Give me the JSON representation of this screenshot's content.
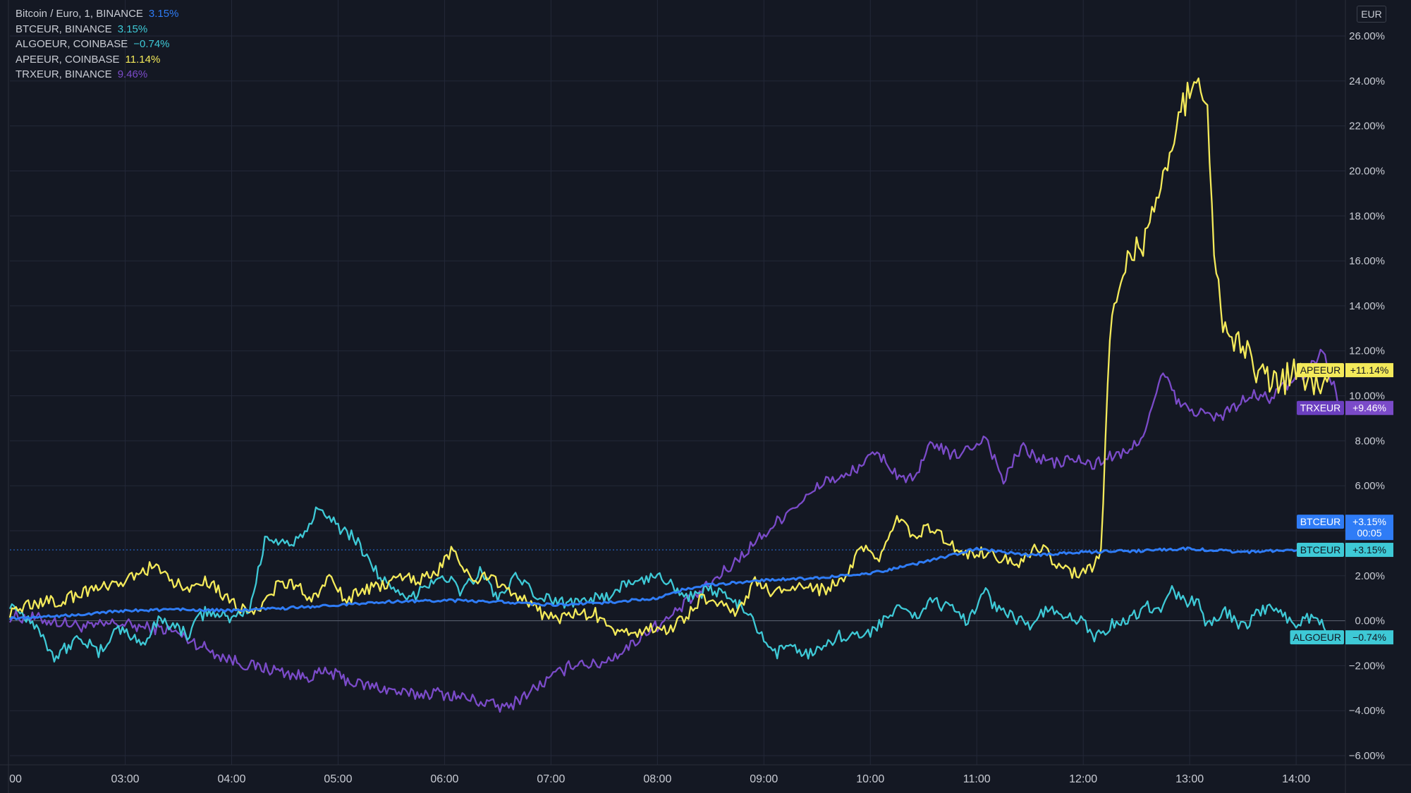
{
  "legend": [
    {
      "name": "Bitcoin / Euro, 1, BINANCE",
      "value": "3.15%",
      "color": "#2f7cf6"
    },
    {
      "name": "BTCEUR, BINANCE",
      "value": "3.15%",
      "color": "#3ec9d6"
    },
    {
      "name": "ALGOEUR, COINBASE",
      "value": "−0.74%",
      "color": "#3ec9d6"
    },
    {
      "name": "APEEUR, COINBASE",
      "value": "11.14%",
      "color": "#f4ea5a"
    },
    {
      "name": "TRXEUR, BINANCE",
      "value": "9.46%",
      "color": "#7b4bc9"
    }
  ],
  "currency": "EUR",
  "colors": {
    "background": "#141823",
    "grid": "#232838",
    "text": "#c9ccd4",
    "btc_main": "#2f7cf6",
    "algo": "#3ec9d6",
    "ape": "#f4ea5a",
    "trx": "#7b4bc9"
  },
  "chart_data": {
    "type": "line",
    "x_unit": "time",
    "x_ticks": [
      "00",
      "03:00",
      "04:00",
      "05:00",
      "06:00",
      "07:00",
      "08:00",
      "09:00",
      "10:00",
      "11:00",
      "12:00",
      "13:00",
      "14:00"
    ],
    "y_ticks": [
      "26.00%",
      "24.00%",
      "22.00%",
      "20.00%",
      "18.00%",
      "16.00%",
      "14.00%",
      "12.00%",
      "10.00%",
      "8.00%",
      "6.00%",
      "4.00%",
      "2.00%",
      "0.00%",
      "−2.00%",
      "−4.00%",
      "−6.00%"
    ],
    "ylim": [
      -6,
      26
    ],
    "xlim": [
      "01:55",
      "14:25"
    ],
    "grid": true,
    "zero_line": 0,
    "price_line": 3.15,
    "series": [
      {
        "name": "BTCEUR",
        "color": "#2f7cf6",
        "width": 3,
        "points": [
          [
            "01:55",
            0.1
          ],
          [
            "02:30",
            0.25
          ],
          [
            "03:00",
            0.45
          ],
          [
            "03:30",
            0.5
          ],
          [
            "04:00",
            0.45
          ],
          [
            "04:30",
            0.55
          ],
          [
            "05:00",
            0.7
          ],
          [
            "05:30",
            0.85
          ],
          [
            "06:00",
            0.9
          ],
          [
            "06:30",
            0.85
          ],
          [
            "07:00",
            0.7
          ],
          [
            "07:30",
            0.8
          ],
          [
            "08:00",
            1.0
          ],
          [
            "08:15",
            1.4
          ],
          [
            "08:30",
            1.6
          ],
          [
            "09:00",
            1.8
          ],
          [
            "09:30",
            1.9
          ],
          [
            "10:00",
            2.1
          ],
          [
            "10:30",
            2.6
          ],
          [
            "11:00",
            3.2
          ],
          [
            "11:30",
            2.9
          ],
          [
            "12:00",
            3.05
          ],
          [
            "12:30",
            3.1
          ],
          [
            "13:00",
            3.2
          ],
          [
            "13:30",
            3.05
          ],
          [
            "14:00",
            3.15
          ],
          [
            "14:25",
            3.2
          ]
        ]
      },
      {
        "name": "ALGOEUR",
        "color": "#3ec9d6",
        "width": 2.3,
        "points": [
          [
            "01:55",
            0.8
          ],
          [
            "02:10",
            -0.2
          ],
          [
            "02:20",
            -1.6
          ],
          [
            "02:35",
            -0.7
          ],
          [
            "02:45",
            -1.5
          ],
          [
            "02:55",
            -0.3
          ],
          [
            "03:10",
            -1.0
          ],
          [
            "03:20",
            0.1
          ],
          [
            "03:35",
            -0.6
          ],
          [
            "03:45",
            0.4
          ],
          [
            "04:00",
            0.1
          ],
          [
            "04:10",
            0.5
          ],
          [
            "04:20",
            3.9
          ],
          [
            "04:30",
            3.4
          ],
          [
            "04:40",
            3.6
          ],
          [
            "04:50",
            5.2
          ],
          [
            "05:00",
            4.2
          ],
          [
            "05:10",
            3.6
          ],
          [
            "05:20",
            2.4
          ],
          [
            "05:30",
            1.3
          ],
          [
            "05:40",
            0.9
          ],
          [
            "05:50",
            1.7
          ],
          [
            "06:00",
            2.0
          ],
          [
            "06:10",
            1.3
          ],
          [
            "06:20",
            2.2
          ],
          [
            "06:30",
            1.0
          ],
          [
            "06:40",
            1.9
          ],
          [
            "06:50",
            1.2
          ],
          [
            "07:00",
            0.9
          ],
          [
            "07:10",
            0.8
          ],
          [
            "07:20",
            1.1
          ],
          [
            "07:30",
            0.9
          ],
          [
            "07:40",
            1.6
          ],
          [
            "07:50",
            1.7
          ],
          [
            "08:00",
            2.1
          ],
          [
            "08:10",
            1.5
          ],
          [
            "08:20",
            1.0
          ],
          [
            "08:30",
            1.4
          ],
          [
            "08:45",
            0.8
          ],
          [
            "08:55",
            -0.2
          ],
          [
            "09:05",
            -1.6
          ],
          [
            "09:15",
            -1.0
          ],
          [
            "09:25",
            -1.5
          ],
          [
            "09:35",
            -1.0
          ],
          [
            "09:45",
            -0.6
          ],
          [
            "09:55",
            -0.8
          ],
          [
            "10:05",
            -0.1
          ],
          [
            "10:15",
            0.5
          ],
          [
            "10:25",
            0.2
          ],
          [
            "10:35",
            0.9
          ],
          [
            "10:45",
            0.5
          ],
          [
            "10:55",
            0.0
          ],
          [
            "11:05",
            1.5
          ],
          [
            "11:10",
            0.6
          ],
          [
            "11:20",
            0.2
          ],
          [
            "11:30",
            -0.2
          ],
          [
            "11:40",
            0.5
          ],
          [
            "11:50",
            0.1
          ],
          [
            "12:00",
            0.1
          ],
          [
            "12:05",
            -0.8
          ],
          [
            "12:15",
            -0.2
          ],
          [
            "12:25",
            0.0
          ],
          [
            "12:35",
            0.6
          ],
          [
            "12:45",
            0.6
          ],
          [
            "12:50",
            1.3
          ],
          [
            "13:00",
            0.8
          ],
          [
            "13:05",
            1.0
          ],
          [
            "13:10",
            -0.3
          ],
          [
            "13:20",
            0.4
          ],
          [
            "13:30",
            -0.3
          ],
          [
            "13:40",
            0.4
          ],
          [
            "13:50",
            0.6
          ],
          [
            "14:00",
            -0.3
          ],
          [
            "14:05",
            0.2
          ],
          [
            "14:25",
            -0.7
          ]
        ]
      },
      {
        "name": "APEEUR",
        "color": "#f4ea5a",
        "width": 2.3,
        "points": [
          [
            "01:55",
            0.4
          ],
          [
            "02:10",
            0.8
          ],
          [
            "02:25",
            0.9
          ],
          [
            "02:40",
            1.4
          ],
          [
            "02:55",
            1.5
          ],
          [
            "03:05",
            2.0
          ],
          [
            "03:15",
            2.4
          ],
          [
            "03:25",
            1.8
          ],
          [
            "03:35",
            1.4
          ],
          [
            "03:45",
            1.9
          ],
          [
            "03:55",
            1.2
          ],
          [
            "04:05",
            0.6
          ],
          [
            "04:15",
            0.5
          ],
          [
            "04:25",
            1.5
          ],
          [
            "04:35",
            1.6
          ],
          [
            "04:45",
            1.0
          ],
          [
            "04:55",
            1.8
          ],
          [
            "05:05",
            0.9
          ],
          [
            "05:15",
            1.4
          ],
          [
            "05:25",
            1.5
          ],
          [
            "05:35",
            2.1
          ],
          [
            "05:45",
            1.8
          ],
          [
            "05:55",
            2.1
          ],
          [
            "06:05",
            3.2
          ],
          [
            "06:15",
            1.7
          ],
          [
            "06:25",
            2.0
          ],
          [
            "06:35",
            1.5
          ],
          [
            "06:45",
            0.9
          ],
          [
            "06:55",
            0.3
          ],
          [
            "07:05",
            0.1
          ],
          [
            "07:15",
            0.3
          ],
          [
            "07:25",
            0.3
          ],
          [
            "07:35",
            -0.6
          ],
          [
            "07:45",
            -0.5
          ],
          [
            "07:55",
            -0.4
          ],
          [
            "08:05",
            -0.4
          ],
          [
            "08:15",
            0.1
          ],
          [
            "08:25",
            1.0
          ],
          [
            "08:35",
            0.9
          ],
          [
            "08:45",
            0.3
          ],
          [
            "08:55",
            1.7
          ],
          [
            "09:05",
            1.2
          ],
          [
            "09:15",
            1.5
          ],
          [
            "09:25",
            1.4
          ],
          [
            "09:35",
            1.4
          ],
          [
            "09:45",
            1.8
          ],
          [
            "09:55",
            3.2
          ],
          [
            "10:05",
            2.7
          ],
          [
            "10:15",
            4.5
          ],
          [
            "10:25",
            3.8
          ],
          [
            "10:35",
            4.2
          ],
          [
            "10:45",
            3.4
          ],
          [
            "10:55",
            3.0
          ],
          [
            "11:05",
            3.0
          ],
          [
            "11:15",
            2.8
          ],
          [
            "11:25",
            2.6
          ],
          [
            "11:35",
            3.3
          ],
          [
            "11:45",
            2.6
          ],
          [
            "11:55",
            2.1
          ],
          [
            "12:05",
            2.3
          ],
          [
            "12:10",
            3.0
          ],
          [
            "12:15",
            13.0
          ],
          [
            "12:25",
            16.0
          ],
          [
            "12:35",
            17.0
          ],
          [
            "12:45",
            20.0
          ],
          [
            "12:55",
            22.5
          ],
          [
            "13:00",
            23.8
          ],
          [
            "13:05",
            24.3
          ],
          [
            "13:10",
            22.5
          ],
          [
            "13:15",
            15.0
          ],
          [
            "13:20",
            13.0
          ],
          [
            "13:25",
            12.5
          ],
          [
            "13:30",
            12.0
          ],
          [
            "13:40",
            11.0
          ],
          [
            "13:50",
            10.5
          ],
          [
            "14:00",
            11.2
          ],
          [
            "14:10",
            10.2
          ],
          [
            "14:20",
            11.3
          ],
          [
            "14:25",
            11.14
          ]
        ]
      },
      {
        "name": "TRXEUR",
        "color": "#7b4bc9",
        "width": 2.3,
        "points": [
          [
            "01:55",
            0.2
          ],
          [
            "02:10",
            0.1
          ],
          [
            "02:25",
            -0.1
          ],
          [
            "02:40",
            -0.3
          ],
          [
            "02:55",
            -0.1
          ],
          [
            "03:10",
            -0.3
          ],
          [
            "03:25",
            -0.4
          ],
          [
            "03:40",
            -1.0
          ],
          [
            "03:55",
            -1.6
          ],
          [
            "04:10",
            -2.0
          ],
          [
            "04:25",
            -2.2
          ],
          [
            "04:40",
            -2.5
          ],
          [
            "04:55",
            -2.3
          ],
          [
            "05:10",
            -2.8
          ],
          [
            "05:25",
            -3.0
          ],
          [
            "05:40",
            -3.3
          ],
          [
            "05:55",
            -3.2
          ],
          [
            "06:10",
            -3.4
          ],
          [
            "06:25",
            -3.7
          ],
          [
            "06:35",
            -3.9
          ],
          [
            "06:45",
            -3.3
          ],
          [
            "06:55",
            -2.8
          ],
          [
            "07:05",
            -2.3
          ],
          [
            "07:15",
            -1.8
          ],
          [
            "07:25",
            -2.0
          ],
          [
            "07:35",
            -1.6
          ],
          [
            "07:45",
            -1.1
          ],
          [
            "07:55",
            -0.4
          ],
          [
            "08:05",
            0.0
          ],
          [
            "08:15",
            0.7
          ],
          [
            "08:25",
            1.3
          ],
          [
            "08:35",
            2.0
          ],
          [
            "08:45",
            2.7
          ],
          [
            "08:55",
            3.5
          ],
          [
            "09:05",
            4.2
          ],
          [
            "09:15",
            5.0
          ],
          [
            "09:25",
            5.5
          ],
          [
            "09:35",
            6.3
          ],
          [
            "09:45",
            6.3
          ],
          [
            "09:55",
            7.0
          ],
          [
            "10:05",
            7.4
          ],
          [
            "10:15",
            6.5
          ],
          [
            "10:25",
            6.2
          ],
          [
            "10:35",
            8.0
          ],
          [
            "10:45",
            7.3
          ],
          [
            "10:55",
            7.6
          ],
          [
            "11:05",
            8.2
          ],
          [
            "11:15",
            6.2
          ],
          [
            "11:25",
            7.7
          ],
          [
            "11:35",
            7.2
          ],
          [
            "11:45",
            7.0
          ],
          [
            "11:55",
            7.2
          ],
          [
            "12:05",
            6.9
          ],
          [
            "12:15",
            7.3
          ],
          [
            "12:25",
            7.4
          ],
          [
            "12:35",
            8.5
          ],
          [
            "12:45",
            11.0
          ],
          [
            "12:55",
            9.5
          ],
          [
            "13:05",
            9.3
          ],
          [
            "13:15",
            9.0
          ],
          [
            "13:25",
            9.5
          ],
          [
            "13:35",
            10.0
          ],
          [
            "13:45",
            9.9
          ],
          [
            "13:55",
            10.5
          ],
          [
            "14:05",
            11.0
          ],
          [
            "14:15",
            12.0
          ],
          [
            "14:25",
            9.46
          ]
        ]
      }
    ],
    "price_labels": [
      {
        "name": "APEEUR",
        "value": "+11.14%",
        "y": 11.14,
        "name_bg": "#f4ea5a",
        "value_bg": "#f4ea5a",
        "text": "#131722"
      },
      {
        "name": "TRXEUR",
        "value": "+9.46%",
        "y": 9.46,
        "name_bg": "#6b3fc0",
        "value_bg": "#7b4bc9",
        "text": "#ffffff"
      },
      {
        "name": "BTCEUR",
        "value": "+3.15%",
        "sub": "00:05",
        "y": 4.4,
        "name_bg": "#2f7cf6",
        "value_bg": "#2f7cf6",
        "text": "#ffffff"
      },
      {
        "name": "BTCEUR",
        "value": "+3.15%",
        "y": 3.15,
        "name_bg": "#3ec9d6",
        "value_bg": "#3ec9d6",
        "text": "#131722"
      },
      {
        "name": "ALGOEUR",
        "value": "−0.74%",
        "y": -0.74,
        "name_bg": "#3ec9d6",
        "value_bg": "#3ec9d6",
        "text": "#131722"
      }
    ]
  }
}
